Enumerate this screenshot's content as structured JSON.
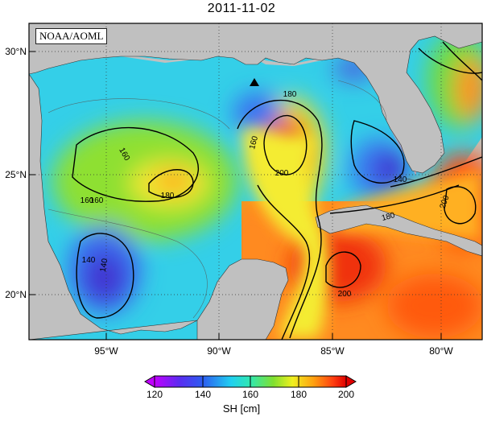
{
  "title": "2011-11-02",
  "credit": "NOAA/AOML",
  "lat_ticks": [
    {
      "label": "30°N",
      "value": 30
    },
    {
      "label": "25°N",
      "value": 25
    },
    {
      "label": "20°N",
      "value": 20
    }
  ],
  "lon_ticks": [
    {
      "label": "95°W",
      "value": -95
    },
    {
      "label": "90°W",
      "value": -90
    },
    {
      "label": "85°W",
      "value": -85
    },
    {
      "label": "80°W",
      "value": -80
    }
  ],
  "contour_labels": [
    "160",
    "160",
    "180",
    "160",
    "180",
    "200",
    "160",
    "140",
    "180",
    "200",
    "140",
    "200",
    "140"
  ],
  "colorbar": {
    "label": "SH [cm]",
    "ticks": [
      "120",
      "140",
      "160",
      "180",
      "200"
    ],
    "range": [
      120,
      200
    ]
  },
  "colors": {
    "land": "#c0c0c0",
    "low": "#3a2fd6",
    "high": "#e8140a"
  },
  "marker": "triangle-icon"
}
